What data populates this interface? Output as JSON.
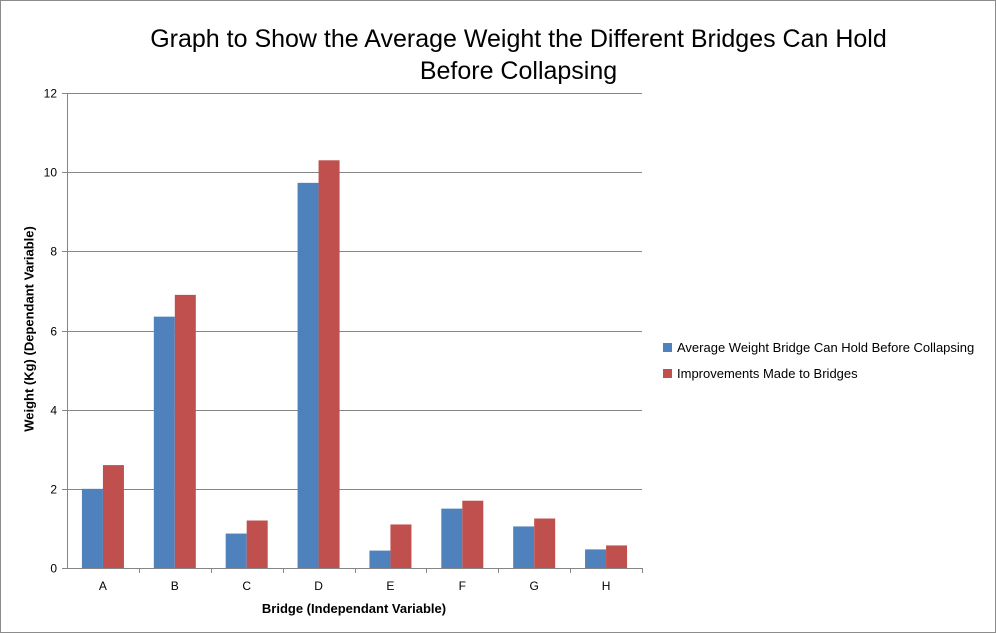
{
  "chart_data": {
    "type": "bar",
    "title": "Graph to Show the Average Weight the Different Bridges Can Hold\nBefore Collapsing",
    "xlabel": "Bridge (Independant Variable)",
    "ylabel": "Weight (Kg) (Dependant Variable)",
    "categories": [
      "A",
      "B",
      "C",
      "D",
      "E",
      "F",
      "G",
      "H"
    ],
    "ylim": [
      0,
      12
    ],
    "yticks": [
      0,
      2,
      4,
      6,
      8,
      10,
      12
    ],
    "grid": true,
    "legend_position": "right",
    "series": [
      {
        "name": "Average Weight Bridge Can Hold Before Collapsing",
        "color": "#4f81bd",
        "values": [
          2.0,
          6.35,
          0.87,
          9.73,
          0.44,
          1.5,
          1.05,
          0.47
        ]
      },
      {
        "name": "Improvements Made to Bridges",
        "color": "#c0504d",
        "values": [
          2.6,
          6.9,
          1.2,
          10.3,
          1.1,
          1.7,
          1.25,
          0.57
        ]
      }
    ]
  }
}
